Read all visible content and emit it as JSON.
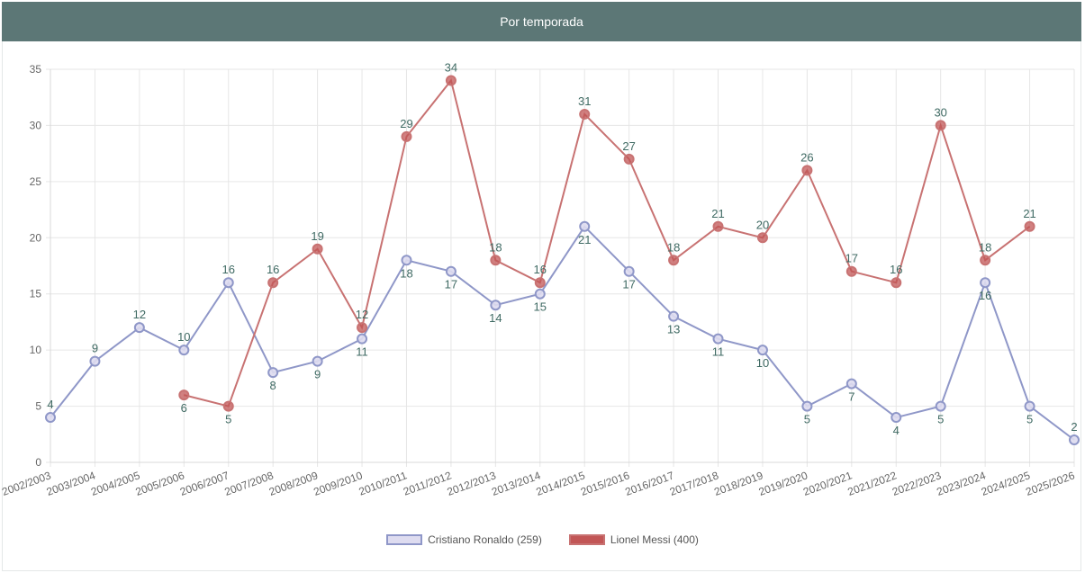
{
  "header": {
    "title": "Por temporada"
  },
  "colors": {
    "ronaldo_line": "#8f97c8",
    "ronaldo_fill": "#dedcf0",
    "messi_line": "#c87272",
    "messi_fill": "#c25656",
    "label_text": "#3f6a63",
    "grid": "#e6e6e6"
  },
  "chart_data": {
    "type": "line",
    "title": "Por temporada",
    "xlabel": "",
    "ylabel": "",
    "ylim": [
      0,
      35
    ],
    "yticks": [
      0,
      5,
      10,
      15,
      20,
      25,
      30,
      35
    ],
    "categories": [
      "2002/2003",
      "2003/2004",
      "2004/2005",
      "2005/2006",
      "2006/2007",
      "2007/2008",
      "2008/2009",
      "2009/2010",
      "2010/2011",
      "2011/2012",
      "2012/2013",
      "2013/2014",
      "2014/2015",
      "2015/2016",
      "2016/2017",
      "2017/2018",
      "2018/2019",
      "2019/2020",
      "2020/2021",
      "2021/2022",
      "2022/2023",
      "2023/2024",
      "2024/2025",
      "2025/2026"
    ],
    "series": [
      {
        "name": "Cristiano Ronaldo",
        "legend_label": "Cristiano Ronaldo (259)",
        "values": [
          4,
          9,
          12,
          10,
          16,
          8,
          9,
          11,
          18,
          17,
          14,
          15,
          21,
          17,
          13,
          11,
          10,
          5,
          7,
          4,
          5,
          16,
          5,
          2
        ],
        "labels_below": [
          false,
          false,
          false,
          false,
          false,
          true,
          true,
          true,
          true,
          true,
          true,
          true,
          true,
          true,
          true,
          true,
          true,
          true,
          true,
          true,
          true,
          true,
          true,
          false
        ]
      },
      {
        "name": "Lionel Messi",
        "legend_label": "Lionel Messi (400)",
        "values": [
          null,
          null,
          null,
          6,
          5,
          16,
          19,
          12,
          29,
          34,
          18,
          16,
          31,
          27,
          18,
          21,
          20,
          26,
          17,
          16,
          30,
          18,
          21,
          null
        ],
        "labels_below": [
          false,
          false,
          false,
          true,
          true,
          false,
          false,
          false,
          false,
          false,
          false,
          false,
          false,
          false,
          false,
          false,
          false,
          false,
          false,
          false,
          false,
          false,
          false,
          false
        ]
      }
    ],
    "legend_position": "bottom"
  }
}
